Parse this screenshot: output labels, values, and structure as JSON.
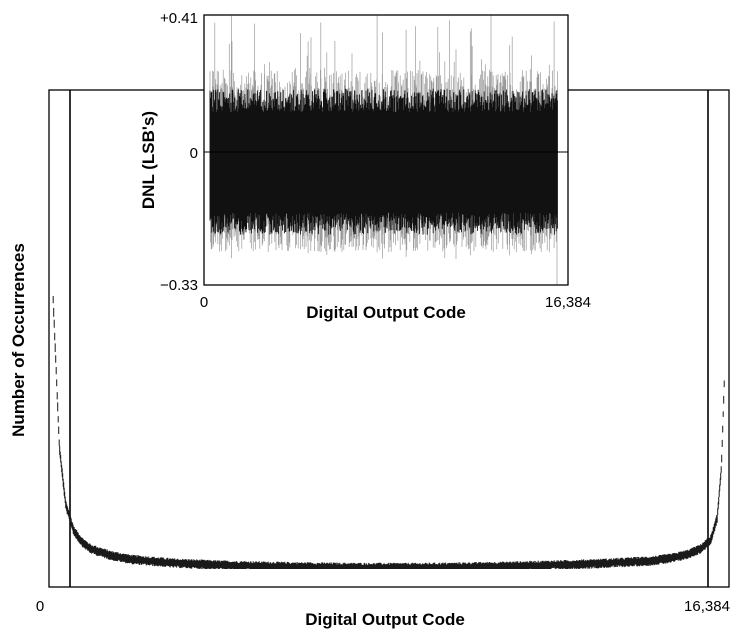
{
  "chart_data": [
    {
      "type": "line",
      "xlabel": "Digital Output Code",
      "ylabel": "Number of Occurrences",
      "xlim": [
        0,
        16384
      ],
      "x_tick_labels": [
        "0",
        "16,384"
      ],
      "y_tick_labels": [],
      "grid": false,
      "series": [
        {
          "x": [
            100,
            250,
            400,
            600,
            800,
            1000,
            1500,
            2000,
            3000,
            4000,
            5000,
            6000,
            7000,
            8192,
            9500,
            11000,
            12500,
            13500,
            14500,
            15000,
            15400,
            15700,
            15950,
            16100,
            16200,
            16270
          ],
          "y": [
            1.0,
            0.45,
            0.24,
            0.14,
            0.1,
            0.075,
            0.05,
            0.035,
            0.022,
            0.015,
            0.011,
            0.008,
            0.006,
            0.005,
            0.006,
            0.01,
            0.016,
            0.022,
            0.03,
            0.04,
            0.055,
            0.075,
            0.11,
            0.19,
            0.38,
            0.7
          ],
          "band": 0.018
        }
      ]
    },
    {
      "type": "line",
      "xlabel": "Digital Output Code",
      "ylabel": "DNL (LSB's)",
      "xlim": [
        0,
        16384
      ],
      "ylim": [
        -0.33,
        0.41
      ],
      "x_tick_labels": [
        "0",
        "16,384"
      ],
      "y_tick_labels": [
        "+0.41",
        "0",
        "−0.33"
      ],
      "grid": false,
      "series": [
        {
          "typical_range": [
            -0.24,
            0.26
          ],
          "peak_max": 0.41,
          "peak_min": -0.33
        }
      ]
    }
  ]
}
